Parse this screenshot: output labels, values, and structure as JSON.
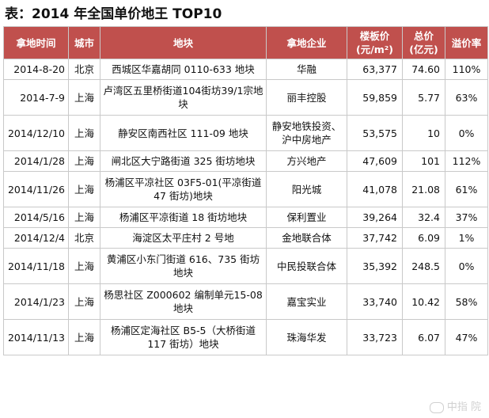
{
  "title": "表：2014 年全国单价地王 TOP10",
  "headers": [
    "拿地时间",
    "城市",
    "地块",
    "拿地企业",
    "楼板价\n(元/m²)",
    "总价\n(亿元)",
    "溢价率"
  ],
  "rows": [
    [
      "2014-8-20",
      "北京",
      "西城区华嘉胡同 0110-633 地块",
      "华融",
      "63,377",
      "74.60",
      "110%"
    ],
    [
      "2014-7-9",
      "上海",
      "卢湾区五里桥街道104街坊39/1宗地块",
      "丽丰控股",
      "59,859",
      "5.77",
      "63%"
    ],
    [
      "2014/12/10",
      "上海",
      "静安区南西社区 111-09 地块",
      "静安地铁投资、沪中房地产",
      "53,575",
      "10",
      "0%"
    ],
    [
      "2014/1/28",
      "上海",
      "闸北区大宁路街道 325 街坊地块",
      "方兴地产",
      "47,609",
      "101",
      "112%"
    ],
    [
      "2014/11/26",
      "上海",
      "杨浦区平凉社区 03F5-01(平凉街道 47 街坊)地块",
      "阳光城",
      "41,078",
      "21.08",
      "61%"
    ],
    [
      "2014/5/16",
      "上海",
      "杨浦区平凉街道 18 街坊地块",
      "保利置业",
      "39,264",
      "32.4",
      "37%"
    ],
    [
      "2014/12/4",
      "北京",
      "海淀区太平庄村 2 号地",
      "金地联合体",
      "37,742",
      "6.09",
      "1%"
    ],
    [
      "2014/11/18",
      "上海",
      "黄浦区小东门街道 616、735 街坊地块",
      "中民投联合体",
      "35,392",
      "248.5",
      "0%"
    ],
    [
      "2014/1/23",
      "上海",
      "杨思社区 Z000602 编制单元15-08 地块",
      "嘉宝实业",
      "33,740",
      "10.42",
      "58%"
    ],
    [
      "2014/11/13",
      "上海",
      "杨浦区定海社区 B5-5（大桥街道117 街坊）地块",
      "珠海华发",
      "33,723",
      "6.07",
      "47%"
    ]
  ],
  "watermark": "中指  院"
}
